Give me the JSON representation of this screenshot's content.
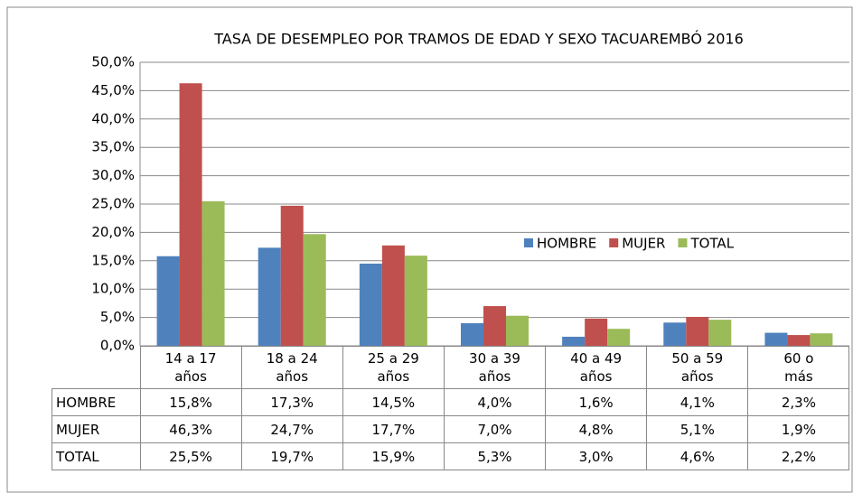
{
  "chart_data": {
    "type": "bar",
    "title": "TASA DE DESEMPLEO POR TRAMOS DE EDAD Y SEXO TACUAREMBÓ 2016",
    "categories": [
      "14 a 17 años",
      "18 a 24 años",
      "25 a 29 años",
      "30 a 39 años",
      "40 a 49 años",
      "50 a 59 años",
      "60 o más"
    ],
    "series": [
      {
        "name": "HOMBRE",
        "color": "#4f81bd",
        "values": [
          15.8,
          17.3,
          14.5,
          4.0,
          1.6,
          4.1,
          2.3
        ],
        "value_labels": [
          "15,8%",
          "17,3%",
          "14,5%",
          "4,0%",
          "1,6%",
          "4,1%",
          "2,3%"
        ]
      },
      {
        "name": "MUJER",
        "color": "#c0504d",
        "values": [
          46.3,
          24.7,
          17.7,
          7.0,
          4.8,
          5.1,
          1.9
        ],
        "value_labels": [
          "46,3%",
          "24,7%",
          "17,7%",
          "7,0%",
          "4,8%",
          "5,1%",
          "1,9%"
        ]
      },
      {
        "name": "TOTAL",
        "color": "#9bbb59",
        "values": [
          25.5,
          19.7,
          15.9,
          5.3,
          3.0,
          4.6,
          2.2
        ],
        "value_labels": [
          "25,5%",
          "19,7%",
          "15,9%",
          "5,3%",
          "3,0%",
          "4,6%",
          "2,2%"
        ]
      }
    ],
    "ylim": [
      0,
      50
    ],
    "yticks": [
      {
        "value": 0,
        "label": "0,0%"
      },
      {
        "value": 5,
        "label": "5,0%"
      },
      {
        "value": 10,
        "label": "10,0%"
      },
      {
        "value": 15,
        "label": "15,0%"
      },
      {
        "value": 20,
        "label": "20,0%"
      },
      {
        "value": 25,
        "label": "25,0%"
      },
      {
        "value": 30,
        "label": "30,0%"
      },
      {
        "value": 35,
        "label": "35,0%"
      },
      {
        "value": 40,
        "label": "40,0%"
      },
      {
        "value": 45,
        "label": "45,0%"
      },
      {
        "value": 50,
        "label": "50,0%"
      }
    ],
    "grid": true,
    "legend": "right"
  }
}
